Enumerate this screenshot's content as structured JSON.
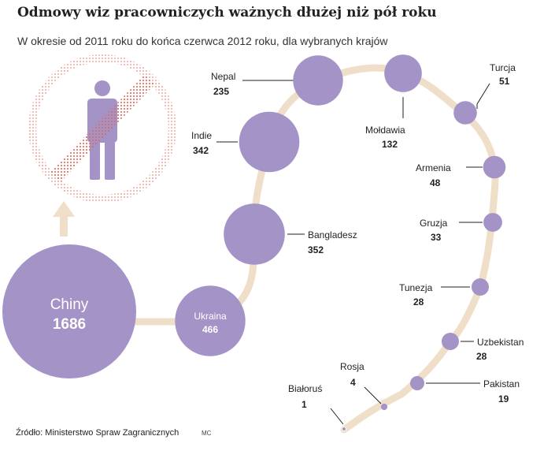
{
  "title": "Odmowy wiz pracowniczych ważnych dłużej niż pół roku",
  "subtitle": "W okresie od 2011 roku do końca czerwca 2012 roku, dla wybranych krajów",
  "source": "Źródło: Ministerstwo Spraw Zagranicznych",
  "author": "MC",
  "colors": {
    "bubble": "#a393c7",
    "path": "#f0dfc8",
    "icon_ring": "#e2685a",
    "icon_figure": "#a393c7",
    "text": "#222222"
  },
  "icon": "no-person-icon",
  "chart_data": {
    "type": "bubble",
    "series": [
      {
        "categories": [
          "Chiny",
          "Ukraina",
          "Bangladesz",
          "Indie",
          "Nepal",
          "Mołdawia",
          "Turcja",
          "Armenia",
          "Gruzja",
          "Tunezja",
          "Uzbekistan",
          "Pakistan",
          "Rosja",
          "Białoruś"
        ],
        "values": [
          1686,
          466,
          352,
          342,
          235,
          132,
          51,
          48,
          33,
          28,
          28,
          19,
          4,
          1
        ]
      }
    ]
  }
}
